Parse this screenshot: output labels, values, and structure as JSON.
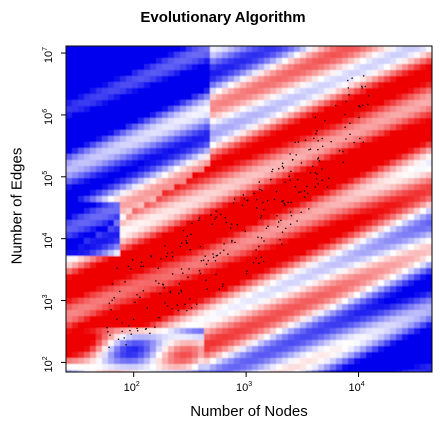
{
  "chart_data": {
    "type": "heatmap",
    "title": "Evolutionary Algorithm",
    "xlabel": "Number of Nodes",
    "ylabel": "Number of Edges",
    "x_scale": "log",
    "y_scale": "log",
    "xlim": [
      25,
      45000
    ],
    "ylim": [
      70,
      13000000
    ],
    "x_ticks": [
      {
        "value": 100,
        "base": "10",
        "exp": "2"
      },
      {
        "value": 1000,
        "base": "10",
        "exp": "3"
      },
      {
        "value": 10000,
        "base": "10",
        "exp": "4"
      }
    ],
    "y_ticks": [
      {
        "value": 100,
        "base": "10",
        "exp": "2"
      },
      {
        "value": 1000,
        "base": "10",
        "exp": "3"
      },
      {
        "value": 10000,
        "base": "10",
        "exp": "4"
      },
      {
        "value": 100000,
        "base": "10",
        "exp": "5"
      },
      {
        "value": 1000000,
        "base": "10",
        "exp": "6"
      },
      {
        "value": 10000000,
        "base": "10",
        "exp": "7"
      }
    ],
    "colors": {
      "high": "#ee0000",
      "mid": "#ffffff",
      "low": "#0000ee",
      "points": "#000000"
    },
    "grid": false,
    "legend": "none"
  }
}
